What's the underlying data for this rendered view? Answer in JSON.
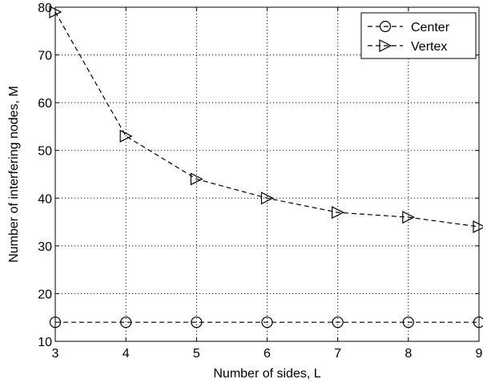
{
  "chart_data": {
    "type": "line",
    "xlabel": "Number of sides, L",
    "ylabel": "Number of interfering nodes, M",
    "xlim": [
      3,
      9
    ],
    "ylim": [
      10,
      80
    ],
    "xticks": [
      3,
      4,
      5,
      6,
      7,
      8,
      9
    ],
    "yticks": [
      10,
      20,
      30,
      40,
      50,
      60,
      70,
      80
    ],
    "grid": true,
    "grid_style": "dotted",
    "legend_position": "top-right",
    "x": [
      3,
      4,
      5,
      6,
      7,
      8,
      9
    ],
    "series": [
      {
        "name": "Center",
        "values": [
          14,
          14,
          14,
          14,
          14,
          14,
          14
        ],
        "marker": "circle",
        "line_style": "dashed",
        "color": "#000000"
      },
      {
        "name": "Vertex",
        "values": [
          79,
          53,
          44,
          40,
          37,
          36,
          34
        ],
        "marker": "triangle-right",
        "line_style": "dashed",
        "color": "#000000"
      }
    ]
  }
}
